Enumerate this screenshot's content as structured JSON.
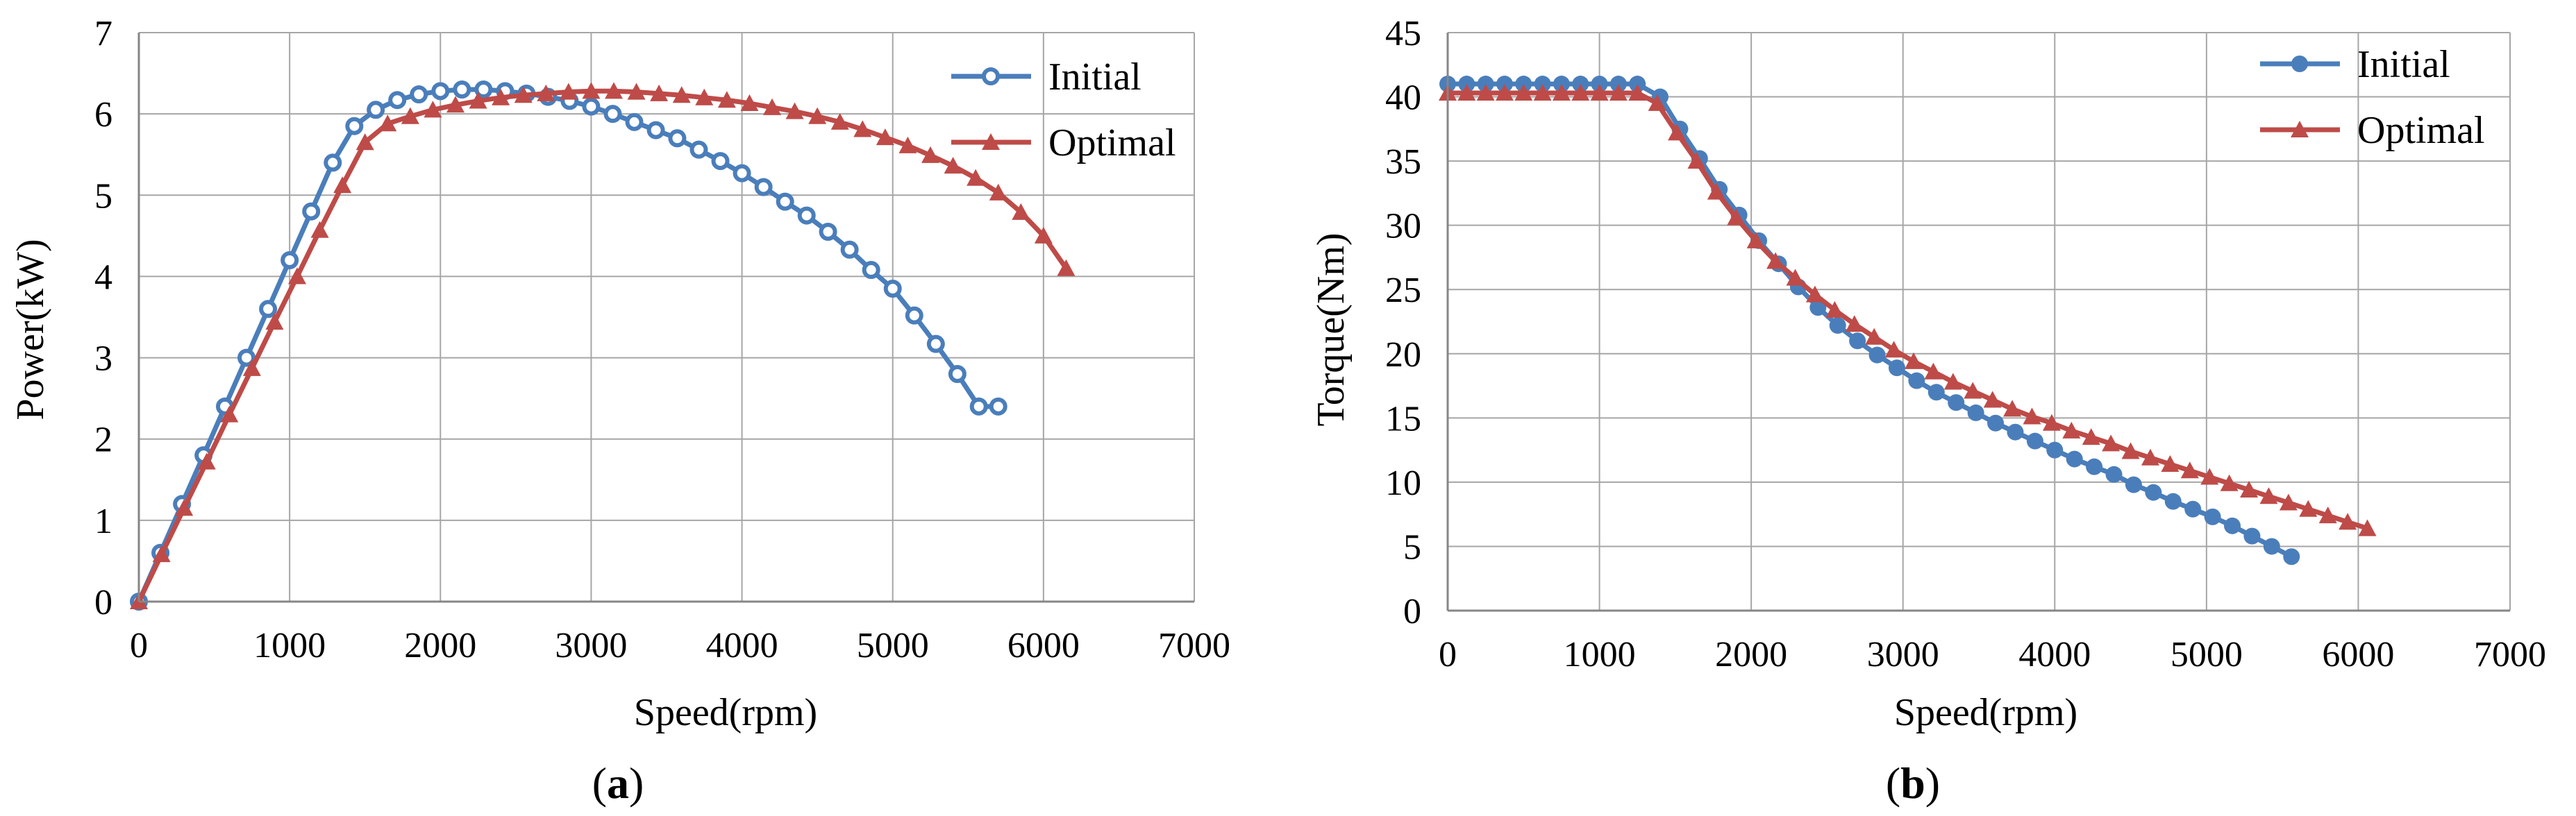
{
  "figure": {
    "panels": [
      {
        "label_open": "(",
        "label_letter": "a",
        "label_close": ")"
      },
      {
        "label_open": "(",
        "label_letter": "b",
        "label_close": ")"
      }
    ]
  },
  "colors": {
    "initial": "#4a7ebb",
    "optimal": "#be4b48",
    "grid": "#a6a6a6",
    "axis": "#868686"
  },
  "chart_data": [
    {
      "type": "line",
      "xlabel": "Speed(rpm)",
      "ylabel": "Power(kW)",
      "xlim": [
        0,
        7000
      ],
      "ylim": [
        0,
        7
      ],
      "xticks": [
        0,
        1000,
        2000,
        3000,
        4000,
        5000,
        6000,
        7000
      ],
      "yticks": [
        0,
        1,
        2,
        3,
        4,
        5,
        6,
        7
      ],
      "xtick_labels": [
        "0",
        "1000",
        "2000",
        "3000",
        "4000",
        "5000",
        "6000",
        "7000"
      ],
      "ytick_labels": [
        "0",
        "1",
        "2",
        "3",
        "4",
        "5",
        "6",
        "7"
      ],
      "grid": true,
      "legend_position": "top-right",
      "series": [
        {
          "name": "Initial",
          "color": "#4a7ebb",
          "marker": "circle-open",
          "x": [
            0,
            143,
            286,
            429,
            571,
            714,
            857,
            1000,
            1143,
            1286,
            1429,
            1571,
            1714,
            1857,
            2000,
            2143,
            2286,
            2429,
            2571,
            2714,
            2857,
            3000,
            3143,
            3286,
            3429,
            3571,
            3714,
            3857,
            4000,
            4143,
            4286,
            4429,
            4571,
            4714,
            4857,
            5000,
            5143,
            5286,
            5429,
            5571,
            5700
          ],
          "y": [
            0,
            0.6,
            1.2,
            1.8,
            2.4,
            3.0,
            3.6,
            4.2,
            4.8,
            5.4,
            5.85,
            6.05,
            6.17,
            6.24,
            6.28,
            6.3,
            6.3,
            6.28,
            6.25,
            6.21,
            6.16,
            6.09,
            6.0,
            5.9,
            5.8,
            5.7,
            5.56,
            5.42,
            5.27,
            5.1,
            4.92,
            4.75,
            4.55,
            4.33,
            4.08,
            3.85,
            3.52,
            3.17,
            2.8,
            2.4,
            2.4
          ]
        },
        {
          "name": "Optimal",
          "color": "#be4b48",
          "marker": "triangle",
          "x": [
            0,
            150,
            300,
            450,
            600,
            750,
            900,
            1050,
            1200,
            1350,
            1500,
            1650,
            1800,
            1950,
            2100,
            2250,
            2400,
            2550,
            2700,
            2850,
            3000,
            3150,
            3300,
            3450,
            3600,
            3750,
            3900,
            4050,
            4200,
            4350,
            4500,
            4650,
            4800,
            4950,
            5100,
            5250,
            5400,
            5550,
            5700,
            5850,
            6000,
            6150
          ],
          "y": [
            0,
            0.58,
            1.15,
            1.72,
            2.3,
            2.87,
            3.44,
            4.0,
            4.57,
            5.12,
            5.65,
            5.88,
            5.97,
            6.05,
            6.11,
            6.16,
            6.2,
            6.23,
            6.25,
            6.27,
            6.28,
            6.28,
            6.27,
            6.25,
            6.23,
            6.2,
            6.17,
            6.13,
            6.08,
            6.03,
            5.97,
            5.9,
            5.81,
            5.71,
            5.61,
            5.49,
            5.36,
            5.21,
            5.03,
            4.79,
            4.5,
            4.1
          ]
        }
      ]
    },
    {
      "type": "line",
      "xlabel": "Speed(rpm)",
      "ylabel": "Torque(Nm)",
      "xlim": [
        0,
        7000
      ],
      "ylim": [
        0,
        45
      ],
      "xticks": [
        0,
        1000,
        2000,
        3000,
        4000,
        5000,
        6000,
        7000
      ],
      "yticks": [
        0,
        5,
        10,
        15,
        20,
        25,
        30,
        35,
        40,
        45
      ],
      "xtick_labels": [
        "0",
        "1000",
        "2000",
        "3000",
        "4000",
        "5000",
        "6000",
        "7000"
      ],
      "ytick_labels": [
        "0",
        "5",
        "10",
        "15",
        "20",
        "25",
        "30",
        "35",
        "40",
        "45"
      ],
      "grid": true,
      "legend_position": "top-right",
      "series": [
        {
          "name": "Initial",
          "color": "#4a7ebb",
          "marker": "circle-filled",
          "x": [
            0,
            125,
            250,
            375,
            500,
            625,
            750,
            875,
            1000,
            1125,
            1250,
            1400,
            1530,
            1660,
            1790,
            1920,
            2050,
            2180,
            2310,
            2440,
            2570,
            2700,
            2830,
            2960,
            3090,
            3220,
            3350,
            3480,
            3610,
            3740,
            3870,
            4000,
            4130,
            4260,
            4390,
            4520,
            4650,
            4780,
            4910,
            5040,
            5170,
            5300,
            5430,
            5560
          ],
          "y": [
            41,
            41,
            41,
            41,
            41,
            41,
            41,
            41,
            41,
            41,
            41,
            40,
            37.5,
            35.2,
            32.8,
            30.8,
            28.8,
            27,
            25.2,
            23.6,
            22.2,
            21,
            19.9,
            18.9,
            17.9,
            17,
            16.2,
            15.4,
            14.6,
            13.9,
            13.2,
            12.5,
            11.8,
            11.2,
            10.6,
            9.8,
            9.2,
            8.5,
            7.9,
            7.3,
            6.6,
            5.8,
            5.0,
            4.2
          ]
        },
        {
          "name": "Optimal",
          "color": "#be4b48",
          "marker": "triangle",
          "x": [
            0,
            125,
            250,
            375,
            500,
            625,
            750,
            875,
            1000,
            1125,
            1250,
            1380,
            1510,
            1640,
            1770,
            1900,
            2030,
            2160,
            2290,
            2420,
            2550,
            2680,
            2810,
            2940,
            3070,
            3200,
            3330,
            3460,
            3590,
            3720,
            3850,
            3980,
            4110,
            4240,
            4370,
            4500,
            4630,
            4760,
            4890,
            5020,
            5150,
            5280,
            5410,
            5540,
            5670,
            5800,
            5930,
            6060
          ],
          "y": [
            40.3,
            40.3,
            40.3,
            40.3,
            40.3,
            40.3,
            40.3,
            40.3,
            40.3,
            40.3,
            40.3,
            39.5,
            37.2,
            35,
            32.6,
            30.6,
            28.8,
            27.2,
            25.9,
            24.6,
            23.4,
            22.3,
            21.3,
            20.3,
            19.4,
            18.6,
            17.8,
            17.1,
            16.4,
            15.7,
            15.1,
            14.6,
            14.0,
            13.5,
            13.0,
            12.4,
            11.9,
            11.4,
            10.9,
            10.4,
            9.9,
            9.4,
            8.9,
            8.4,
            7.9,
            7.4,
            6.9,
            6.4
          ]
        }
      ]
    }
  ]
}
